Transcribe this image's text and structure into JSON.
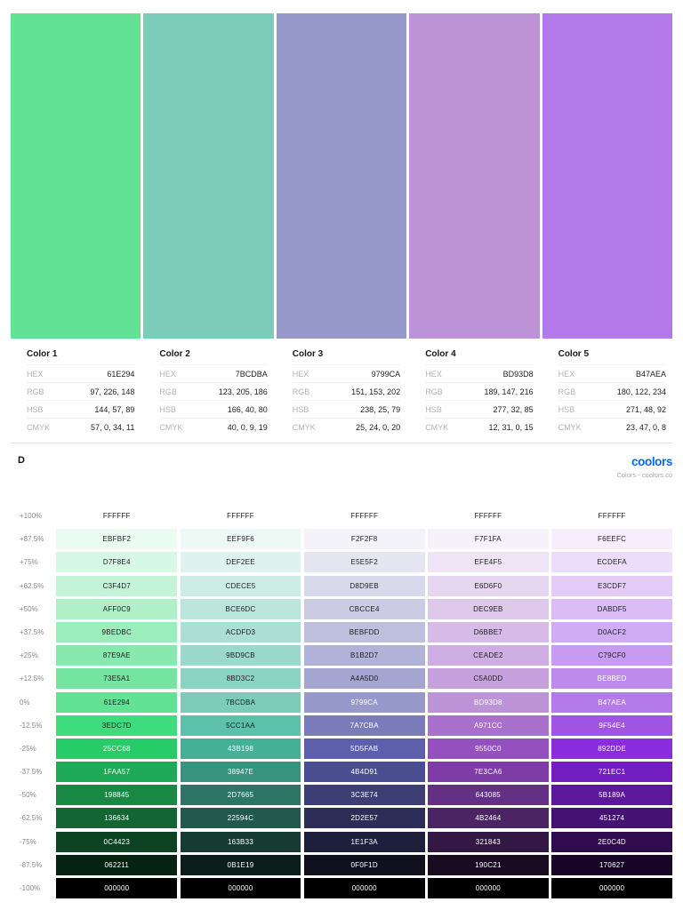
{
  "palette": {
    "info_labels": [
      "HEX",
      "RGB",
      "HSB",
      "CMYK"
    ],
    "colors": [
      {
        "name": "Color 1",
        "hex": "61E294",
        "rgb": "97, 226, 148",
        "hsb": "144, 57, 89",
        "cmyk": "57, 0, 34, 11"
      },
      {
        "name": "Color 2",
        "hex": "7BCDBA",
        "rgb": "123, 205, 186",
        "hsb": "166, 40, 80",
        "cmyk": "40, 0, 9, 19"
      },
      {
        "name": "Color 3",
        "hex": "9799CA",
        "rgb": "151, 153, 202",
        "hsb": "238, 25, 79",
        "cmyk": "25, 24, 0, 20"
      },
      {
        "name": "Color 4",
        "hex": "BD93D8",
        "rgb": "189, 147, 216",
        "hsb": "277, 32, 85",
        "cmyk": "12, 31, 0, 15"
      },
      {
        "name": "Color 5",
        "hex": "B47AEA",
        "rgb": "180, 122, 234",
        "hsb": "271, 48, 92",
        "cmyk": "23, 47, 0, 8"
      }
    ]
  },
  "header": {
    "title": "D",
    "logo_label": "coolors",
    "logo_sub": "Colors - coolors.co",
    "logo_color": "#0066FF"
  },
  "shades_table": {
    "row_labels": [
      "+100%",
      "+87.5%",
      "+75%",
      "+62.5%",
      "+50%",
      "+37.5%",
      "+25%",
      "+12.5%",
      "0%",
      "-12.5%",
      "-25%",
      "-37.5%",
      "-50%",
      "-62.5%",
      "-75%",
      "-87.5%",
      "-100%"
    ],
    "columns": [
      {
        "base": "61E294",
        "shades": [
          "FFFFFF",
          "EBFBF2",
          "D7F8E4",
          "C3F4D7",
          "AFF0C9",
          "9BEDBC",
          "87E9AE",
          "73E5A1",
          "61E294",
          "3EDC7D",
          "25CC68",
          "1FAA57",
          "198845",
          "136634",
          "0C4423",
          "062211",
          "000000"
        ]
      },
      {
        "base": "7BCDBA",
        "shades": [
          "FFFFFF",
          "EEF9F6",
          "DEF2EE",
          "CDECE5",
          "BCE6DC",
          "ACDFD3",
          "9BD9CB",
          "8BD3C2",
          "7BCDBA",
          "5CC1AA",
          "43B198",
          "38947E",
          "2D7665",
          "22594C",
          "163B33",
          "0B1E19",
          "000000"
        ]
      },
      {
        "base": "9799CA",
        "shades": [
          "FFFFFF",
          "F2F2F8",
          "E5E5F2",
          "D8D9EB",
          "CBCCE4",
          "BEBFDD",
          "B1B2D7",
          "A4A5D0",
          "9799CA",
          "7A7CBA",
          "5D5FAB",
          "4B4D91",
          "3C3E74",
          "2D2E57",
          "1E1F3A",
          "0F0F1D",
          "000000"
        ]
      },
      {
        "base": "BD93D8",
        "shades": [
          "FFFFFF",
          "F7F1FA",
          "EFE4F5",
          "E6D6F0",
          "DEC9EB",
          "D6BBE7",
          "CEADE2",
          "C5A0DD",
          "BD93D8",
          "A971CC",
          "9550C0",
          "7E3CA6",
          "643085",
          "4B2464",
          "321843",
          "190C21",
          "000000"
        ]
      },
      {
        "base": "B47AEA",
        "shades": [
          "FFFFFF",
          "F6EEFC",
          "ECDEFA",
          "E3CDF7",
          "DABDF5",
          "D0ACF2",
          "C79CF0",
          "BE8BED",
          "B47AEA",
          "9F54E4",
          "892DDE",
          "721EC1",
          "5B189A",
          "451274",
          "2E0C4D",
          "170627",
          "000000"
        ]
      }
    ]
  }
}
